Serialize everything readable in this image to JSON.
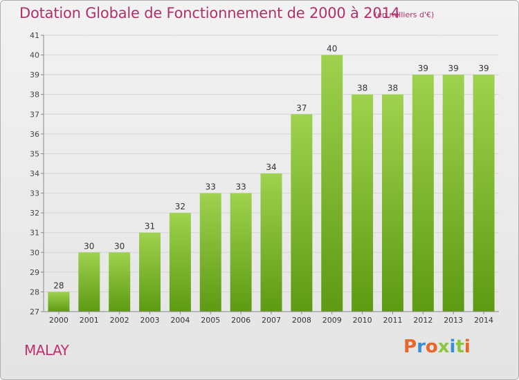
{
  "chart_data": {
    "type": "bar",
    "title": "Dotation Globale de Fonctionnement de 2000 à 2014",
    "subtitle": "(en milliers d'€)",
    "categories": [
      "2000",
      "2001",
      "2002",
      "2003",
      "2004",
      "2005",
      "2006",
      "2007",
      "2008",
      "2009",
      "2010",
      "2011",
      "2012",
      "2013",
      "2014"
    ],
    "values": [
      28,
      30,
      30,
      31,
      32,
      33,
      33,
      34,
      37,
      40,
      38,
      38,
      39,
      39,
      39
    ],
    "ylim": [
      27,
      41
    ],
    "yticks": [
      27,
      28,
      29,
      30,
      31,
      32,
      33,
      34,
      35,
      36,
      37,
      38,
      39,
      40,
      41
    ],
    "xlabel": "",
    "ylabel": "",
    "grid": true,
    "bar_color": "#8cc63f"
  },
  "footer": {
    "town": "MALAY",
    "logo": "Proxiti"
  },
  "colors": {
    "title": "#b0306a",
    "logo_letters": [
      "#e8662a",
      "#3a8fd0",
      "#e8662a",
      "#8cc63f",
      "#3a8fd0",
      "#8cc63f",
      "#e8662a"
    ]
  }
}
